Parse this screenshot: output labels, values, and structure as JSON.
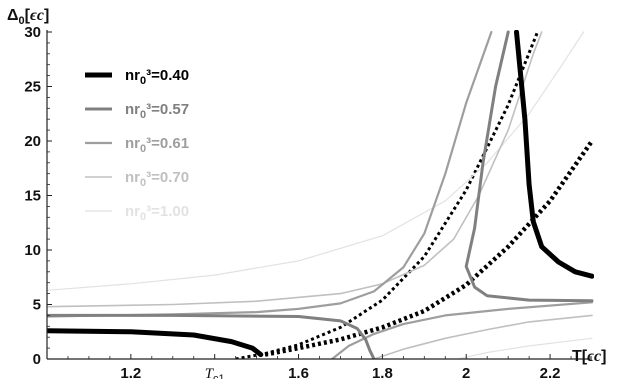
{
  "chart_data": {
    "type": "line",
    "xlabel_base": "T",
    "xlabel_unit": "ϵc",
    "ylabel_base": "Δ",
    "ylabel_sub": "0",
    "ylabel_unit": "ϵc",
    "xlim": [
      1.0,
      2.3
    ],
    "ylim": [
      0,
      30
    ],
    "grid": false,
    "legend_position": "top-left",
    "x_ticks": [
      {
        "value": 1.2,
        "label": "1.2"
      },
      {
        "value": 1.4,
        "label": "Tc1"
      },
      {
        "value": 1.6,
        "label": "1.6"
      },
      {
        "value": 1.8,
        "label": "1.8"
      },
      {
        "value": 2.0,
        "label": "2"
      },
      {
        "value": 2.2,
        "label": "2.2"
      }
    ],
    "y_ticks": [
      0,
      5,
      10,
      15,
      20,
      25,
      30
    ],
    "series": [
      {
        "name": "nr0³=0.40",
        "legend_prefix": "nr",
        "legend_sub": "0",
        "legend_suffix": "³=0.40",
        "color": "#000000",
        "width": 5,
        "branches": [
          [
            [
              1.0,
              2.6
            ],
            [
              1.2,
              2.5
            ],
            [
              1.35,
              2.2
            ],
            [
              1.44,
              1.6
            ],
            [
              1.49,
              1.0
            ],
            [
              1.51,
              0.4
            ]
          ],
          [
            [
              2.12,
              30.0
            ],
            [
              2.14,
              22.0
            ],
            [
              2.15,
              16.0
            ],
            [
              2.16,
              12.6
            ],
            [
              2.18,
              10.3
            ],
            [
              2.22,
              8.9
            ],
            [
              2.26,
              8.0
            ],
            [
              2.3,
              7.6
            ]
          ]
        ]
      },
      {
        "name": "nr0³=0.57",
        "legend_prefix": "nr",
        "legend_sub": "0",
        "legend_suffix": "³=0.57",
        "color": "#808080",
        "width": 3,
        "branches": [
          [
            [
              1.0,
              4.0
            ],
            [
              1.3,
              4.0
            ],
            [
              1.6,
              3.9
            ],
            [
              1.7,
              3.5
            ],
            [
              1.74,
              2.8
            ],
            [
              1.76,
              1.8
            ],
            [
              1.77,
              0.8
            ],
            [
              1.78,
              0.0
            ]
          ],
          [
            [
              2.1,
              30.0
            ],
            [
              2.07,
              25.0
            ],
            [
              2.04,
              18.0
            ],
            [
              2.02,
              12.0
            ],
            [
              2.0,
              8.5
            ],
            [
              2.02,
              6.6
            ],
            [
              2.05,
              5.8
            ],
            [
              2.15,
              5.4
            ],
            [
              2.3,
              5.35
            ]
          ]
        ]
      },
      {
        "name": "nr0³=0.61",
        "legend_prefix": "nr",
        "legend_sub": "0",
        "legend_suffix": "³=0.61",
        "color": "#9e9e9e",
        "width": 2.2,
        "branches": [
          [
            [
              1.0,
              3.9
            ],
            [
              1.3,
              4.1
            ],
            [
              1.5,
              4.3
            ],
            [
              1.6,
              4.6
            ],
            [
              1.7,
              5.1
            ],
            [
              1.78,
              6.2
            ],
            [
              1.85,
              8.4
            ],
            [
              1.9,
              11.5
            ],
            [
              1.95,
              17.0
            ],
            [
              2.0,
              23.5
            ],
            [
              2.06,
              30.0
            ]
          ],
          [
            [
              1.68,
              0.0
            ],
            [
              1.72,
              1.2
            ],
            [
              1.78,
              2.3
            ],
            [
              1.85,
              3.2
            ],
            [
              1.95,
              4.0
            ],
            [
              2.1,
              4.6
            ],
            [
              2.3,
              5.2
            ]
          ]
        ]
      },
      {
        "name": "nr0³=0.70",
        "legend_prefix": "nr",
        "legend_sub": "0",
        "legend_suffix": "³=0.70",
        "color": "#c0c0c0",
        "width": 1.6,
        "branches": [
          [
            [
              1.0,
              4.8
            ],
            [
              1.3,
              5.0
            ],
            [
              1.5,
              5.3
            ],
            [
              1.7,
              6.0
            ],
            [
              1.8,
              6.9
            ],
            [
              1.9,
              8.6
            ],
            [
              1.97,
              11.0
            ],
            [
              2.03,
              15.0
            ],
            [
              2.1,
              21.0
            ],
            [
              2.16,
              28.0
            ],
            [
              2.18,
              30.0
            ]
          ],
          [
            [
              1.78,
              0.0
            ],
            [
              1.85,
              0.9
            ],
            [
              1.95,
              1.9
            ],
            [
              2.05,
              2.7
            ],
            [
              2.15,
              3.4
            ],
            [
              2.3,
              4.0
            ]
          ]
        ]
      },
      {
        "name": "nr0³=1.00",
        "legend_prefix": "nr",
        "legend_sub": "0",
        "legend_suffix": "³=1.00",
        "color": "#e2e2e2",
        "width": 1.2,
        "branches": [
          [
            [
              1.0,
              6.3
            ],
            [
              1.2,
              6.9
            ],
            [
              1.4,
              7.7
            ],
            [
              1.6,
              9.0
            ],
            [
              1.8,
              11.3
            ],
            [
              1.95,
              14.5
            ],
            [
              2.05,
              18.0
            ],
            [
              2.15,
              22.5
            ],
            [
              2.22,
              26.5
            ],
            [
              2.28,
              30.0
            ]
          ],
          [
            [
              1.98,
              0.0
            ],
            [
              2.05,
              0.6
            ],
            [
              2.15,
              1.2
            ],
            [
              2.3,
              1.9
            ]
          ]
        ]
      },
      {
        "name": "",
        "color": "#000000",
        "width": 3,
        "dash": "3,3",
        "branches": [
          [
            [
              1.45,
              0.0
            ],
            [
              1.52,
              0.5
            ],
            [
              1.6,
              1.3
            ],
            [
              1.7,
              2.9
            ],
            [
              1.8,
              5.4
            ],
            [
              1.9,
              9.4
            ],
            [
              2.0,
              15.5
            ],
            [
              2.1,
              23.3
            ],
            [
              2.17,
              30.0
            ]
          ]
        ]
      },
      {
        "name": "",
        "color": "#000000",
        "width": 4.5,
        "dash": "3,3",
        "branches": [
          [
            [
              1.52,
              0.4
            ],
            [
              1.6,
              1.0
            ],
            [
              1.7,
              1.8
            ],
            [
              1.8,
              2.9
            ],
            [
              1.9,
              4.4
            ],
            [
              2.0,
              6.8
            ],
            [
              2.1,
              10.3
            ],
            [
              2.2,
              14.5
            ],
            [
              2.3,
              20.0
            ]
          ]
        ]
      }
    ]
  }
}
